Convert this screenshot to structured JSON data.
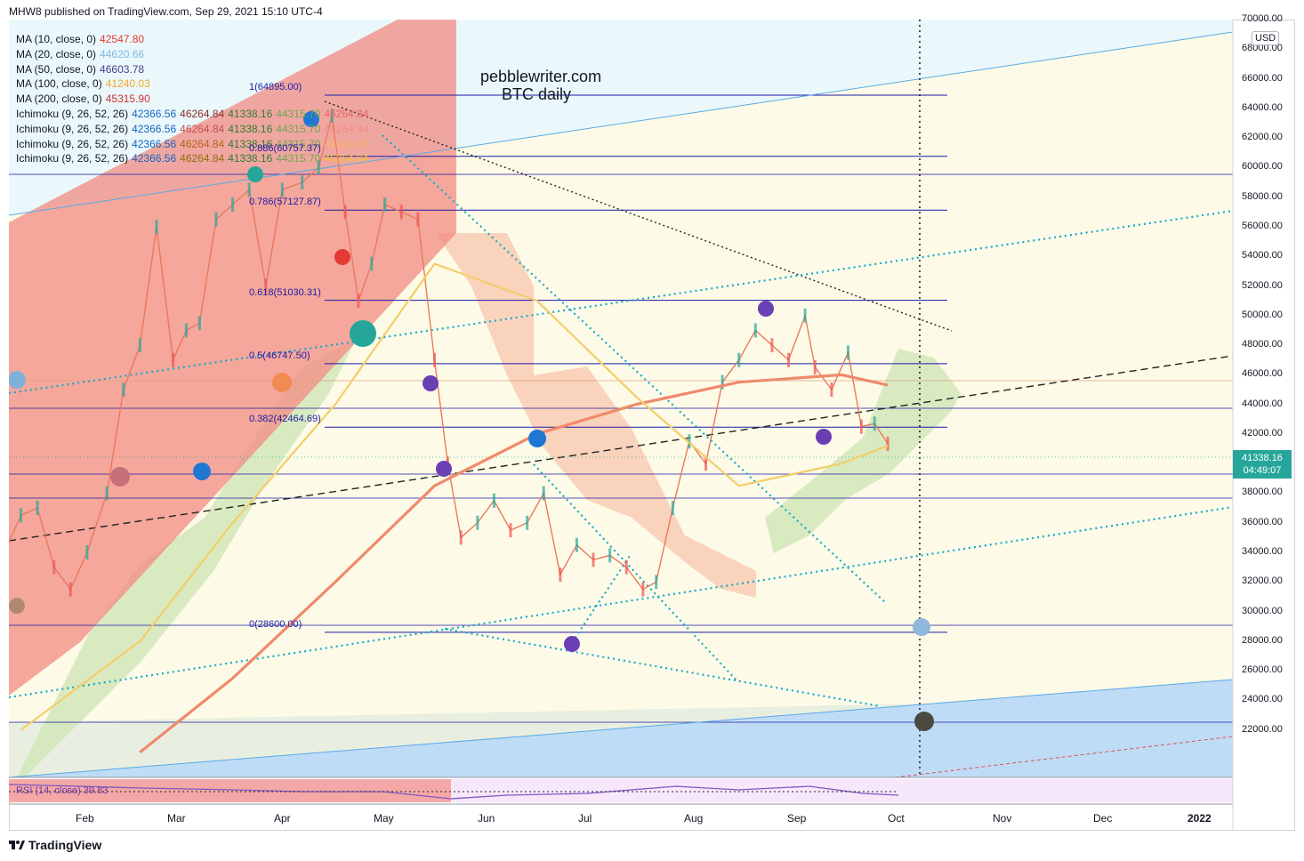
{
  "header": {
    "publisher_line": "MHW8 published on TradingView.com, Sep 29, 2021 15:10 UTC-4"
  },
  "annotations": {
    "site": "pebblewriter.com",
    "subtitle": "BTC daily"
  },
  "legend": [
    {
      "name": "MA (10, close, 0)",
      "values": [
        "42547.80"
      ],
      "colors": [
        "#e53935"
      ]
    },
    {
      "name": "MA (20, close, 0)",
      "values": [
        "44620.66"
      ],
      "colors": [
        "#7fb8e0"
      ]
    },
    {
      "name": "MA (50, close, 0)",
      "values": [
        "46603.78"
      ],
      "colors": [
        "#4a3a8c"
      ]
    },
    {
      "name": "MA (100, close, 0)",
      "values": [
        "41240.03"
      ],
      "colors": [
        "#f5a623"
      ]
    },
    {
      "name": "MA (200, close, 0)",
      "values": [
        "45315.90"
      ],
      "colors": [
        "#d32f2f"
      ]
    },
    {
      "name": "Ichimoku (9, 26, 52, 26)",
      "values": [
        "42366.56",
        "46264.84",
        "41338.16",
        "44315.70",
        "46264.84"
      ],
      "colors": [
        "#1565c0",
        "#8b2a2a",
        "#2e7d32",
        "#6aa84f",
        "#e06666"
      ]
    },
    {
      "name": "Ichimoku (9, 26, 52, 26)",
      "values": [
        "42366.56",
        "46264.84",
        "41338.16",
        "44315.70",
        "46264.84"
      ],
      "colors": [
        "#1565c0",
        "#c0504d",
        "#2e7d32",
        "#6aa84f",
        "#f28b82"
      ]
    },
    {
      "name": "Ichimoku (9, 26, 52, 26)",
      "values": [
        "42366.56",
        "46264.84",
        "41338.16",
        "44315.70",
        "46264.84"
      ],
      "colors": [
        "#1565c0",
        "#b5651d",
        "#2e7d32",
        "#6aa84f",
        "#f6b26b"
      ]
    },
    {
      "name": "Ichimoku (9, 26, 52, 26)",
      "values": [
        "42366.56",
        "46264.84",
        "41338.16",
        "44315.70",
        "46264.84"
      ],
      "colors": [
        "#1565c0",
        "#8d6e0f",
        "#2e7d32",
        "#6aa84f",
        "#f1c232"
      ]
    }
  ],
  "price_axis": {
    "currency": "USD",
    "last_price": "41338.16",
    "countdown": "04:49:07"
  },
  "rsi": {
    "label": "RSI (14, close) 39.83"
  },
  "footer": {
    "brand": "TradingView"
  },
  "colors": {
    "candle_up": "#26a69a",
    "candle_down": "#ef5350",
    "fib_line": "#1a1aa6",
    "channel_fill": "#f28b82",
    "cloud_green": "#b7e1a1",
    "cloud_red": "#f9c9b1",
    "cyan_dotted": "#17a9c9",
    "last_price_bg": "#26a69a"
  },
  "chart_data": {
    "type": "line",
    "title": "",
    "ylabel": "USD",
    "xlabel": "",
    "ylim": [
      20000,
      70000
    ],
    "y_ticks": [
      "22000.00",
      "24000.00",
      "26000.00",
      "28000.00",
      "30000.00",
      "32000.00",
      "34000.00",
      "36000.00",
      "38000.00",
      "40000.00",
      "42000.00",
      "44000.00",
      "46000.00",
      "48000.00",
      "50000.00",
      "52000.00",
      "54000.00",
      "56000.00",
      "58000.00",
      "60000.00",
      "62000.00",
      "64000.00",
      "66000.00",
      "68000.00",
      "70000.00"
    ],
    "x_ticks": [
      "Feb",
      "Mar",
      "Apr",
      "May",
      "Jun",
      "Jul",
      "Aug",
      "Sep",
      "Oct",
      "Nov",
      "Dec",
      "2022"
    ],
    "fibonacci": [
      {
        "label": "1(64895.00)",
        "value": 64895.0
      },
      {
        "label": "0.886(60757.37)",
        "value": 60757.37
      },
      {
        "label": "0.786(57127.87)",
        "value": 57127.87
      },
      {
        "label": "0.618(51030.31)",
        "value": 51030.31
      },
      {
        "label": "0.5(46747.50)",
        "value": 46747.5
      },
      {
        "label": "0.382(42464.69)",
        "value": 42464.69
      },
      {
        "label": "0(28600.00)",
        "value": 28600.0
      }
    ],
    "series": [
      {
        "name": "BTC daily",
        "x": [
          "2021-01-05",
          "2021-01-10",
          "2021-01-15",
          "2021-01-20",
          "2021-01-25",
          "2021-01-30",
          "2021-02-05",
          "2021-02-10",
          "2021-02-15",
          "2021-02-20",
          "2021-02-25",
          "2021-03-01",
          "2021-03-05",
          "2021-03-10",
          "2021-03-15",
          "2021-03-20",
          "2021-03-25",
          "2021-03-30",
          "2021-04-05",
          "2021-04-10",
          "2021-04-14",
          "2021-04-18",
          "2021-04-22",
          "2021-04-26",
          "2021-04-30",
          "2021-05-05",
          "2021-05-10",
          "2021-05-15",
          "2021-05-19",
          "2021-05-23",
          "2021-05-28",
          "2021-06-02",
          "2021-06-07",
          "2021-06-12",
          "2021-06-17",
          "2021-06-22",
          "2021-06-27",
          "2021-07-02",
          "2021-07-07",
          "2021-07-12",
          "2021-07-17",
          "2021-07-21",
          "2021-07-26",
          "2021-07-31",
          "2021-08-05",
          "2021-08-10",
          "2021-08-15",
          "2021-08-20",
          "2021-08-25",
          "2021-08-30",
          "2021-09-04",
          "2021-09-07",
          "2021-09-12",
          "2021-09-17",
          "2021-09-21",
          "2021-09-25",
          "2021-09-29"
        ],
        "values": [
          34000,
          36500,
          37000,
          33000,
          31500,
          34000,
          38000,
          45000,
          48000,
          56000,
          47000,
          49000,
          49500,
          56500,
          57500,
          58500,
          52000,
          58500,
          59000,
          60000,
          63500,
          57000,
          51000,
          53500,
          57500,
          57000,
          56500,
          47000,
          40000,
          35000,
          36000,
          37500,
          35500,
          36000,
          38000,
          32500,
          34500,
          33500,
          33800,
          33000,
          31500,
          32000,
          37000,
          41500,
          40000,
          45500,
          47000,
          49000,
          48000,
          47000,
          50000,
          46500,
          45000,
          47500,
          42500,
          42700,
          41338
        ]
      },
      {
        "name": "MA (200, close, 0)",
        "x": [
          "2021-02-15",
          "2021-03-15",
          "2021-04-15",
          "2021-05-15",
          "2021-06-15",
          "2021-07-15",
          "2021-08-15",
          "2021-09-15",
          "2021-09-29"
        ],
        "values": [
          20500,
          25500,
          32000,
          38500,
          42000,
          44000,
          45500,
          46000,
          45300
        ]
      },
      {
        "name": "MA (100, close, 0)",
        "x": [
          "2021-01-10",
          "2021-02-15",
          "2021-03-15",
          "2021-04-15",
          "2021-05-15",
          "2021-06-15",
          "2021-07-15",
          "2021-08-15",
          "2021-09-15",
          "2021-09-29"
        ],
        "values": [
          22000,
          28000,
          36000,
          44000,
          53500,
          51000,
          44500,
          38500,
          40000,
          41200
        ]
      }
    ],
    "grid": false,
    "legend_position": "top-left"
  }
}
